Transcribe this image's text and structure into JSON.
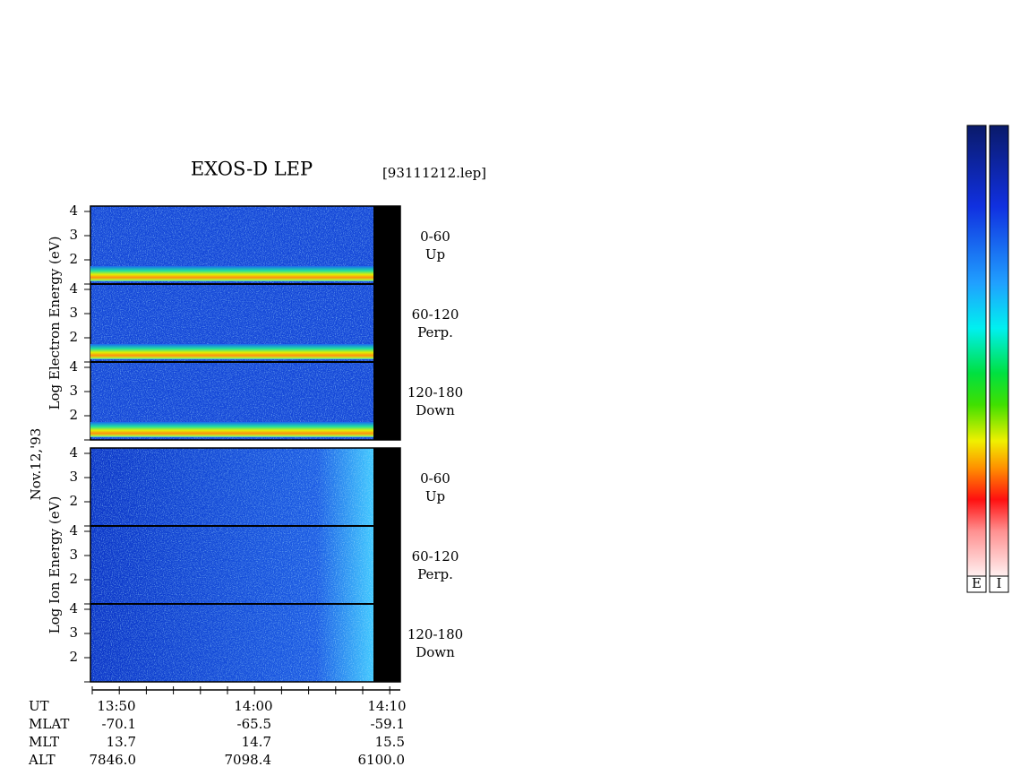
{
  "title": "EXOS-D LEP",
  "file": "[93111212.lep]",
  "date": "Nov.12,'93",
  "blocks": [
    {
      "axis_label": "Log Electron Energy (eV)",
      "panels": [
        {
          "angle": "0-60",
          "direction": "Up"
        },
        {
          "angle": "60-120",
          "direction": "Perp."
        },
        {
          "angle": "120-180",
          "direction": "Down"
        }
      ]
    },
    {
      "axis_label": "Log Ion Energy (eV)",
      "panels": [
        {
          "angle": "0-60",
          "direction": "Up"
        },
        {
          "angle": "60-120",
          "direction": "Perp."
        },
        {
          "angle": "120-180",
          "direction": "Down"
        }
      ]
    }
  ],
  "yticks": [
    "4",
    "3",
    "2"
  ],
  "time": {
    "labels": [
      "UT",
      "MLAT",
      "MLT",
      "ALT"
    ],
    "columns": [
      [
        "13:50",
        "-70.1",
        "13.7",
        "7846.0"
      ],
      [
        "14:00",
        "-65.5",
        "14.7",
        "7098.4"
      ],
      [
        "14:10",
        "-59.1",
        "15.5",
        "6100.0"
      ]
    ]
  },
  "colorbars": [
    "E",
    "I"
  ]
}
